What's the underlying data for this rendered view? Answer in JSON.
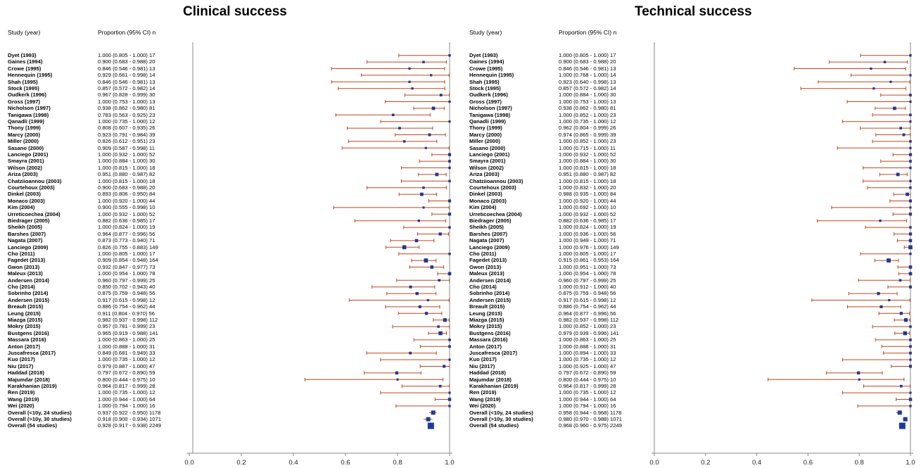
{
  "panels": [
    {
      "title": "Clinical success",
      "col_study": "Study (year)",
      "col_prop": "Proportion (95% CI) n",
      "rows": [
        {
          "study": "Dyet (1993)",
          "prop": "1.000 (0.805 - 1.000) 17"
        },
        {
          "study": "Gaines (1994)",
          "prop": "0.900 (0.683 - 0.988) 20"
        },
        {
          "study": "Crowe (1995)",
          "prop": "0.846 (0.546 - 0.981) 13"
        },
        {
          "study": "Hennequin (1995)",
          "prop": "0.929 (0.661 - 0.998) 14"
        },
        {
          "study": "Shah (1995)",
          "prop": "0.846 (0.546 - 0.981) 13"
        },
        {
          "study": "Stock (1995)",
          "prop": "0.857 (0.572 - 0.982) 14"
        },
        {
          "study": "Oudkerk (1996)",
          "prop": "0.967 (0.828 - 0.999) 30"
        },
        {
          "study": "Gross (1997)",
          "prop": "1.000 (0.753 - 1.000) 13"
        },
        {
          "study": "Nicholson (1997)",
          "prop": "0.938 (0.862 - 0.980) 81"
        },
        {
          "study": "Tanigawa (1998)",
          "prop": "0.783 (0.563 - 0.925) 23"
        },
        {
          "study": "Qanadli (1999)",
          "prop": "1.000 (0.735 - 1.000) 12"
        },
        {
          "study": "Thony (1999)",
          "prop": "0.808 (0.607 - 0.935) 26"
        },
        {
          "study": "Marcy (2000)",
          "prop": "0.923 (0.791 - 0.984) 39"
        },
        {
          "study": "Miller (2000)",
          "prop": "0.826 (0.612 - 0.951) 23"
        },
        {
          "study": "Sasano (2000)",
          "prop": "0.909 (0.587 - 0.998) 11"
        },
        {
          "study": "Lanciego (2001)",
          "prop": "1.000 (0.932 - 1.000) 52"
        },
        {
          "study": "Smayra (2001)",
          "prop": "1.000 (0.884 - 1.000) 30"
        },
        {
          "study": "Wilson (2002)",
          "prop": "1.000 (0.815 - 1.000) 18"
        },
        {
          "study": "Ariza (2003)",
          "prop": "0.951 (0.880 - 0.987) 82"
        },
        {
          "study": "Chatziioannou (2003)",
          "prop": "1.000 (0.815 - 1.000) 18"
        },
        {
          "study": "Courtehoux (2003)",
          "prop": "0.900 (0.683 - 0.988) 20"
        },
        {
          "study": "Dinkel (2003)",
          "prop": "0.893 (0.806 - 0.950) 84"
        },
        {
          "study": "Monaco (2003)",
          "prop": "1.000 (0.920 - 1.000) 44"
        },
        {
          "study": "Kim (2004)",
          "prop": "0.900 (0.555 - 0.998) 10"
        },
        {
          "study": "Urreticoechea (2004)",
          "prop": "1.000 (0.932 - 1.000) 52"
        },
        {
          "study": "Biedrager (2005)",
          "prop": "0.882 (0.636 - 0.985) 17"
        },
        {
          "study": "Sheikh (2005)",
          "prop": "1.000 (0.824 - 1.000) 19"
        },
        {
          "study": "Barshes (2007)",
          "prop": "0.964 (0.877 - 0.996) 56"
        },
        {
          "study": "Nagata (2007)",
          "prop": "0.873 (0.773 - 0.940) 71"
        },
        {
          "study": "Lanciego (2009)",
          "prop": "0.826 (0.755 - 0.883) 149"
        },
        {
          "study": "Cho (2011)",
          "prop": "1.000 (0.805 - 1.000) 17"
        },
        {
          "study": "Fagedet (2013)",
          "prop": "0.909 (0.854 - 0.948) 164"
        },
        {
          "study": "Gwon (2013)",
          "prop": "0.932 (0.847 - 0.977) 73"
        },
        {
          "study": "Maleux (2013)",
          "prop": "1.000 (0.954 - 1.000) 78"
        },
        {
          "study": "Andersen (2014)",
          "prop": "0.960 (0.797 - 0.999) 25"
        },
        {
          "study": "Cho (2014)",
          "prop": "0.850 (0.702 - 0.943) 40"
        },
        {
          "study": "Sobrinho (2014)",
          "prop": "0.875 (0.759 - 0.948) 56"
        },
        {
          "study": "Andersen (2015)",
          "prop": "0.917 (0.615 - 0.998) 12"
        },
        {
          "study": "Breault (2015)",
          "prop": "0.886 (0.754 - 0.962) 44"
        },
        {
          "study": "Leung (2015)",
          "prop": "0.911 (0.804 - 0.970) 56"
        },
        {
          "study": "Miazga (2015)",
          "prop": "0.982 (0.937 - 0.998) 112"
        },
        {
          "study": "Mokry (2015)",
          "prop": "0.957 (0.781 - 0.999) 23"
        },
        {
          "study": "Bustgens (2016)",
          "prop": "0.965 (0.919 - 0.988) 141"
        },
        {
          "study": "Massara (2016)",
          "prop": "1.000 (0.863 - 1.000) 25"
        },
        {
          "study": "Anton (2017)",
          "prop": "1.000 (0.888 - 1.000) 31"
        },
        {
          "study": "Juscafresca (2017)",
          "prop": "0.849 (0.681 - 0.949) 33"
        },
        {
          "study": "Kuo (2017)",
          "prop": "1.000 (0.735 - 1.000) 12"
        },
        {
          "study": "Niu (2017)",
          "prop": "0.979 (0.887 - 1.000) 47"
        },
        {
          "study": "Haddad (2018)",
          "prop": "0.797 (0.672 - 0.890) 59"
        },
        {
          "study": "Majumdar (2018)",
          "prop": "0.800 (0.444 - 0.975) 10"
        },
        {
          "study": "Karakhanian (2019)",
          "prop": "0.964 (0.817 - 0.999) 28"
        },
        {
          "study": "Ren (2019)",
          "prop": "1.000 (0.735 - 1.000) 12"
        },
        {
          "study": "Wang (2019)",
          "prop": "1.000 (0.944 - 1.000) 64"
        },
        {
          "study": "Wei  (2020)",
          "prop": "1.000 (0.794 - 1.000) 16"
        },
        {
          "study": "Overall (<10y, 24 studies)",
          "prop": "0.937 (0.922 - 0.950) 1178"
        },
        {
          "study": "Overall (>10y, 30 studies)",
          "prop": "0.918 (0.900 - 0.934) 1071"
        },
        {
          "study": "Overall (54 studies)",
          "prop": "0.928 (0.917 - 0.938) 2249"
        }
      ]
    },
    {
      "title": "Technical success",
      "col_study": "Study (year)",
      "col_prop": "Proportion (95% CI) n",
      "rows": [
        {
          "study": "Dyet (1993)",
          "prop": "1.000 (0.805 - 1.000) 17"
        },
        {
          "study": "Gaines (1994)",
          "prop": "0.900 (0.683 - 0.988) 20"
        },
        {
          "study": "Crowe (1995)",
          "prop": "0.846 (0.546 - 0.981) 13"
        },
        {
          "study": "Hennequin (1995)",
          "prop": "1.000 (0.768 - 1.000) 14"
        },
        {
          "study": "Shah (1995)",
          "prop": "0.923 (0.640 - 0.998) 13"
        },
        {
          "study": "Stock (1995)",
          "prop": "0.857 (0.572 - 0.982) 14"
        },
        {
          "study": "Oudkerk (1996)",
          "prop": "1.000 (0.884 - 1.000) 30"
        },
        {
          "study": "Gross (1997)",
          "prop": "1.000 (0.753 - 1.000) 13"
        },
        {
          "study": "Nicholson (1997)",
          "prop": "0.938 (0.862 - 0.980) 81"
        },
        {
          "study": "Tanigawa (1998)",
          "prop": "1.000 (0.852 - 1.000) 23"
        },
        {
          "study": "Qanadli (1999)",
          "prop": "1.000 (0.735 - 1.000) 12"
        },
        {
          "study": "Thony (1999)",
          "prop": "0.962 (0.804 - 0.999) 26"
        },
        {
          "study": "Marcy (2000)",
          "prop": "0.974 (0.865 - 0.999) 39"
        },
        {
          "study": "Miller (2000)",
          "prop": "1.000 (0.852 - 1.000) 23"
        },
        {
          "study": "Sasano (2000)",
          "prop": "1.000 (0.715 - 1.000) 11"
        },
        {
          "study": "Lanciego (2001)",
          "prop": "1.000 (0.932 - 1.000) 52"
        },
        {
          "study": "Smayra (2001)",
          "prop": "1.000 (0.884 - 1.000) 30"
        },
        {
          "study": "Wilson (2002)",
          "prop": "1.000 (0.815 - 1.000) 18"
        },
        {
          "study": "Ariza (2003)",
          "prop": "0.951 (0.880 - 0.987) 82"
        },
        {
          "study": "Chatziioannou (2003)",
          "prop": "1.000 (0.815 - 1.000) 18"
        },
        {
          "study": "Courtehoux (2003)",
          "prop": "1.000 (0.832 - 1.000) 20"
        },
        {
          "study": "Dinkel (2003)",
          "prop": "0.988 (0.935 - 1.000) 84"
        },
        {
          "study": "Monaco (2003)",
          "prop": "1.000 (0.920 - 1.000) 44"
        },
        {
          "study": "Kim (2004)",
          "prop": "1.000 (0.692 - 1.000) 10"
        },
        {
          "study": "Urreticoechea (2004)",
          "prop": "1.000 (0.932 - 1.000) 52"
        },
        {
          "study": "Biedrager (2005)",
          "prop": "0.882 (0.636 - 0.985) 17"
        },
        {
          "study": "Sheikh (2005)",
          "prop": "1.000 (0.824 - 1.000) 19"
        },
        {
          "study": "Barshes (2007)",
          "prop": "1.000 (0.936 - 1.000) 56"
        },
        {
          "study": "Nagata (2007)",
          "prop": "1.000 (0.949 - 1.000) 71"
        },
        {
          "study": "Lanciego (2009)",
          "prop": "1.000 (0.976 - 1.000) 149"
        },
        {
          "study": "Cho (2011)",
          "prop": "1.000 (0.805 - 1.000) 17"
        },
        {
          "study": "Fagedet (2013)",
          "prop": "0.915 (0.861 - 0.953) 164"
        },
        {
          "study": "Gwon (2013)",
          "prop": "1.000 (0.951 - 1.000) 73"
        },
        {
          "study": "Maleux (2013)",
          "prop": "1.000 (0.954 - 1.000) 78"
        },
        {
          "study": "Andersen (2014)",
          "prop": "0.960 (0.797 - 0.999) 25"
        },
        {
          "study": "Cho (2014)",
          "prop": "1.000 (0.912 - 1.000) 40"
        },
        {
          "study": "Sobrinho (2014)",
          "prop": "0.875 (0.759 - 0.948) 56"
        },
        {
          "study": "Andersen (2015)",
          "prop": "0.917 (0.615 - 0.998) 12"
        },
        {
          "study": "Breault (2015)",
          "prop": "0.886 (0.754 - 0.962) 44"
        },
        {
          "study": "Leung (2015)",
          "prop": "0.964 (0.877 - 0.996) 56"
        },
        {
          "study": "Miazga (2015)",
          "prop": "0.982 (0.937 - 0.998) 112"
        },
        {
          "study": "Mokry (2015)",
          "prop": "1.000 (0.852 - 1.000) 23"
        },
        {
          "study": "Bustgens (2016)",
          "prop": "0.979 (0.939 - 0.996) 141"
        },
        {
          "study": "Massara (2016)",
          "prop": "1.000 (0.863 - 1.000) 25"
        },
        {
          "study": "Anton (2017)",
          "prop": "1.000 (0.888 - 1.000) 31"
        },
        {
          "study": "Juscafresca (2017)",
          "prop": "1.000 (0.894 - 1.000) 33"
        },
        {
          "study": "Kuo (2017)",
          "prop": "1.000 (0.735 - 1.000) 12"
        },
        {
          "study": "Niu (2017)",
          "prop": "1.000 (0.925 - 1.000) 47"
        },
        {
          "study": "Haddad (2018)",
          "prop": "0.797 (0.672 - 0.890) 59"
        },
        {
          "study": "Majumdar (2018)",
          "prop": "0.800 (0.444 - 0.975) 10"
        },
        {
          "study": "Karakhanian (2019)",
          "prop": "0.964 (0.817 - 0.999) 28"
        },
        {
          "study": "Ren (2019)",
          "prop": "1.000 (0.735 - 1.000) 12"
        },
        {
          "study": "Wang (2019)",
          "prop": "1.000 (0.944 - 1.000) 64"
        },
        {
          "study": "Wei  (2020)",
          "prop": "1.000 (0.794 - 1.000) 16"
        },
        {
          "study": "Overall (<10y, 24 studies)",
          "prop": "0.958 (0.944 - 0.968) 1178"
        },
        {
          "study": "Overall (>10y, 30 studies)",
          "prop": "0.980 (0.970 - 0.988) 1071"
        },
        {
          "study": "Overall (54 studies)",
          "prop": "0.968 (0.960 - 0.975) 2249"
        }
      ]
    }
  ],
  "colors": {
    "ci": "#c0471f",
    "point": "#1f3a93",
    "overall_point": "#1f3a93",
    "axis": "#888888"
  },
  "chart_data": [
    {
      "type": "forest",
      "title": "Clinical success",
      "xlim": [
        0,
        1
      ],
      "xticks": [
        "0.0",
        "0.2",
        "0.4",
        "0.6",
        "0.8",
        "1.0"
      ],
      "summary_rows": 3,
      "estimates": [
        1.0,
        0.9,
        0.846,
        0.929,
        0.846,
        0.857,
        0.967,
        1.0,
        0.938,
        0.783,
        1.0,
        0.808,
        0.923,
        0.826,
        0.909,
        1.0,
        1.0,
        1.0,
        0.951,
        1.0,
        0.9,
        0.893,
        1.0,
        0.9,
        1.0,
        0.882,
        1.0,
        0.964,
        0.873,
        0.826,
        1.0,
        0.909,
        0.932,
        1.0,
        0.96,
        0.85,
        0.875,
        0.917,
        0.886,
        0.911,
        0.982,
        0.957,
        0.965,
        1.0,
        1.0,
        0.849,
        1.0,
        0.979,
        0.797,
        0.8,
        0.964,
        1.0,
        1.0,
        1.0,
        0.937,
        0.918,
        0.928
      ],
      "lower": [
        0.805,
        0.683,
        0.546,
        0.661,
        0.546,
        0.572,
        0.828,
        0.753,
        0.862,
        0.563,
        0.735,
        0.607,
        0.791,
        0.612,
        0.587,
        0.932,
        0.884,
        0.815,
        0.88,
        0.815,
        0.683,
        0.806,
        0.92,
        0.555,
        0.932,
        0.636,
        0.824,
        0.877,
        0.773,
        0.755,
        0.805,
        0.854,
        0.847,
        0.954,
        0.797,
        0.702,
        0.759,
        0.615,
        0.754,
        0.804,
        0.937,
        0.781,
        0.919,
        0.863,
        0.888,
        0.681,
        0.735,
        0.887,
        0.672,
        0.444,
        0.817,
        0.735,
        0.944,
        0.794,
        0.922,
        0.9,
        0.917
      ],
      "upper": [
        1.0,
        0.988,
        0.981,
        0.998,
        0.981,
        0.982,
        0.999,
        1.0,
        0.98,
        0.925,
        1.0,
        0.935,
        0.984,
        0.951,
        0.998,
        1.0,
        1.0,
        1.0,
        0.987,
        1.0,
        0.988,
        0.95,
        1.0,
        0.998,
        1.0,
        0.985,
        1.0,
        0.996,
        0.94,
        0.883,
        1.0,
        0.948,
        0.977,
        1.0,
        0.999,
        0.943,
        0.948,
        0.998,
        0.962,
        0.97,
        0.998,
        0.999,
        0.988,
        1.0,
        1.0,
        0.949,
        1.0,
        1.0,
        0.89,
        0.975,
        0.999,
        1.0,
        1.0,
        1.0,
        0.95,
        0.934,
        0.938
      ],
      "n": [
        17,
        20,
        13,
        14,
        13,
        14,
        30,
        13,
        81,
        23,
        12,
        26,
        39,
        23,
        11,
        52,
        30,
        18,
        82,
        18,
        20,
        84,
        44,
        10,
        52,
        17,
        19,
        56,
        71,
        149,
        17,
        164,
        73,
        78,
        25,
        40,
        56,
        12,
        44,
        56,
        112,
        23,
        141,
        25,
        31,
        33,
        12,
        47,
        59,
        10,
        28,
        12,
        64,
        16,
        1178,
        1071,
        2249
      ]
    },
    {
      "type": "forest",
      "title": "Technical success",
      "xlim": [
        0,
        1
      ],
      "xticks": [
        "0.0",
        "0.2",
        "0.4",
        "0.6",
        "0.8",
        "1.0"
      ],
      "summary_rows": 3,
      "estimates": [
        1.0,
        0.9,
        0.846,
        1.0,
        0.923,
        0.857,
        1.0,
        1.0,
        0.938,
        1.0,
        1.0,
        0.962,
        0.974,
        1.0,
        1.0,
        1.0,
        1.0,
        1.0,
        0.951,
        1.0,
        1.0,
        0.988,
        1.0,
        1.0,
        1.0,
        0.882,
        1.0,
        1.0,
        1.0,
        1.0,
        1.0,
        0.915,
        1.0,
        1.0,
        0.96,
        1.0,
        0.875,
        0.917,
        0.886,
        0.964,
        0.982,
        1.0,
        0.979,
        1.0,
        1.0,
        1.0,
        1.0,
        1.0,
        0.797,
        0.8,
        0.964,
        1.0,
        1.0,
        1.0,
        0.958,
        0.98,
        0.968
      ],
      "lower": [
        0.805,
        0.683,
        0.546,
        0.768,
        0.64,
        0.572,
        0.884,
        0.753,
        0.862,
        0.852,
        0.735,
        0.804,
        0.865,
        0.852,
        0.715,
        0.932,
        0.884,
        0.815,
        0.88,
        0.815,
        0.832,
        0.935,
        0.92,
        0.692,
        0.932,
        0.636,
        0.824,
        0.936,
        0.949,
        0.976,
        0.805,
        0.861,
        0.951,
        0.954,
        0.797,
        0.912,
        0.759,
        0.615,
        0.754,
        0.877,
        0.937,
        0.852,
        0.939,
        0.863,
        0.888,
        0.894,
        0.735,
        0.925,
        0.672,
        0.444,
        0.817,
        0.735,
        0.944,
        0.794,
        0.944,
        0.97,
        0.96
      ],
      "upper": [
        1.0,
        0.988,
        0.981,
        1.0,
        0.998,
        0.982,
        1.0,
        1.0,
        0.98,
        1.0,
        1.0,
        0.999,
        0.999,
        1.0,
        1.0,
        1.0,
        1.0,
        1.0,
        0.987,
        1.0,
        1.0,
        1.0,
        1.0,
        1.0,
        1.0,
        0.985,
        1.0,
        1.0,
        1.0,
        1.0,
        1.0,
        0.953,
        1.0,
        1.0,
        0.999,
        1.0,
        0.948,
        0.998,
        0.962,
        0.996,
        0.998,
        1.0,
        0.996,
        1.0,
        1.0,
        1.0,
        1.0,
        1.0,
        0.89,
        0.975,
        0.999,
        1.0,
        1.0,
        1.0,
        0.968,
        0.988,
        0.975
      ],
      "n": [
        17,
        20,
        13,
        14,
        13,
        14,
        30,
        13,
        81,
        23,
        12,
        26,
        39,
        23,
        11,
        52,
        30,
        18,
        82,
        18,
        20,
        84,
        44,
        10,
        52,
        17,
        19,
        56,
        71,
        149,
        17,
        164,
        73,
        78,
        25,
        40,
        56,
        12,
        44,
        56,
        112,
        23,
        141,
        25,
        31,
        33,
        12,
        47,
        59,
        10,
        28,
        12,
        64,
        16,
        1178,
        1071,
        2249
      ]
    }
  ]
}
